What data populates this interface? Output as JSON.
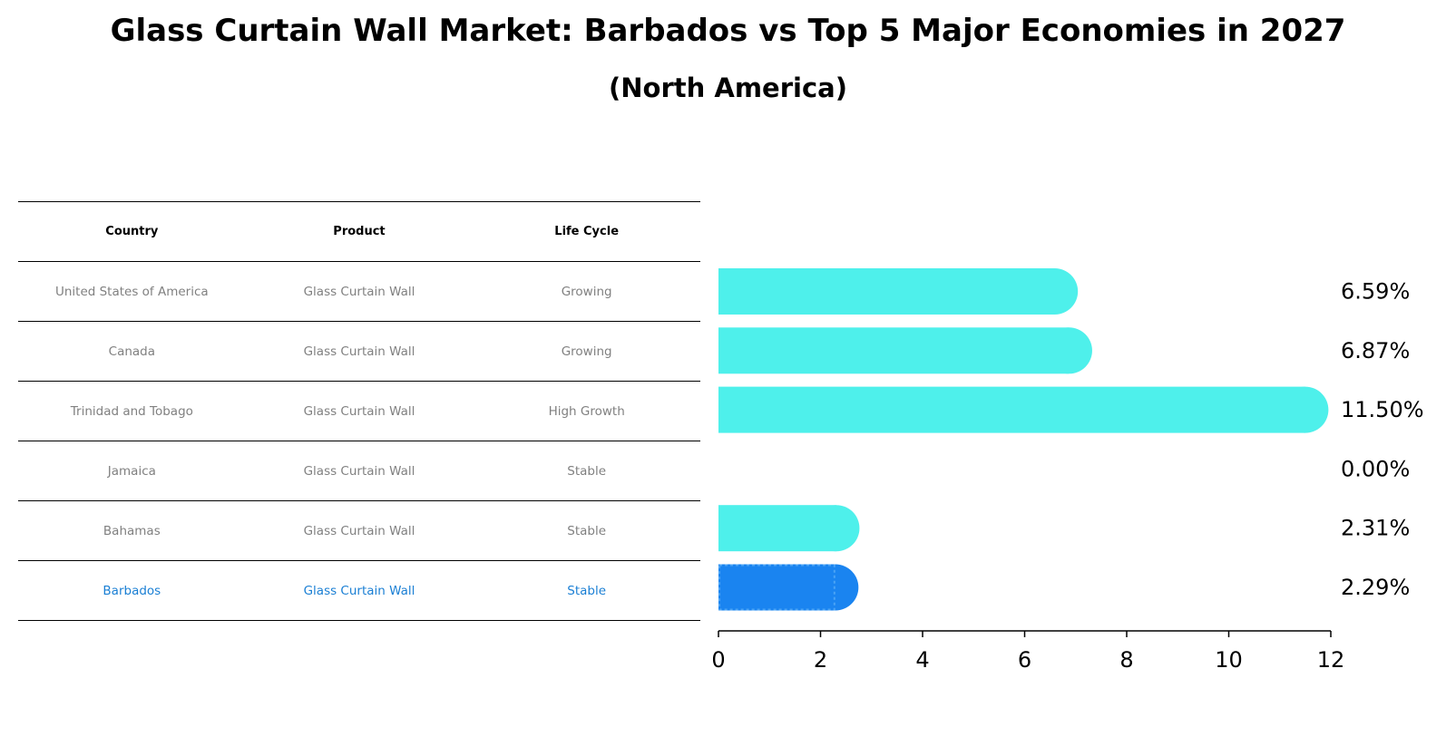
{
  "title": "Glass Curtain Wall Market: Barbados vs Top 5 Major Economies in 2027",
  "subtitle": "(North America)",
  "table": {
    "headers": [
      "Country",
      "Product",
      "Life Cycle"
    ],
    "rows": [
      {
        "country": "United States of America",
        "product": "Glass Curtain Wall",
        "life_cycle": "Growing"
      },
      {
        "country": "Canada",
        "product": "Glass Curtain Wall",
        "life_cycle": "Growing"
      },
      {
        "country": "Trinidad and Tobago",
        "product": "Glass Curtain Wall",
        "life_cycle": "High Growth"
      },
      {
        "country": "Jamaica",
        "product": "Glass Curtain Wall",
        "life_cycle": "Stable"
      },
      {
        "country": "Bahamas",
        "product": "Glass Curtain Wall",
        "life_cycle": "Stable"
      },
      {
        "country": "Barbados",
        "product": "Glass Curtain Wall",
        "life_cycle": "Stable"
      }
    ]
  },
  "colors": {
    "bar": "#4ef0eb",
    "highlight": "#1a84f0",
    "highlight_text": "#1a7fd4",
    "text_muted": "#808080"
  },
  "chart_data": {
    "type": "bar",
    "orientation": "horizontal",
    "categories": [
      "United States of America",
      "Canada",
      "Trinidad and Tobago",
      "Jamaica",
      "Bahamas",
      "Barbados"
    ],
    "values": [
      6.59,
      6.87,
      11.5,
      0.0,
      2.31,
      2.29
    ],
    "value_labels": [
      "6.59%",
      "6.87%",
      "11.50%",
      "0.00%",
      "2.31%",
      "2.29%"
    ],
    "highlight": "Barbados",
    "xlim": [
      0,
      12
    ],
    "xticks": [
      0,
      2,
      4,
      6,
      8,
      10,
      12
    ],
    "xlabel": "",
    "ylabel": ""
  }
}
